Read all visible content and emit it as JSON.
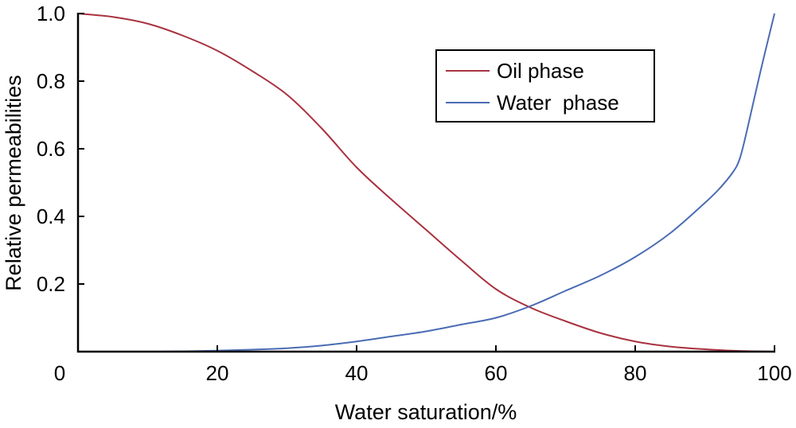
{
  "chart_data": {
    "type": "line",
    "title": "",
    "xlabel": "Water saturation/%",
    "ylabel": "Relative permeabilities",
    "xlim": [
      0,
      100
    ],
    "ylim": [
      0,
      1.0
    ],
    "xticks": [
      "0",
      "20",
      "40",
      "60",
      "80",
      "100"
    ],
    "yticks": [
      "0.2",
      "0.4",
      "0.6",
      "0.8",
      "1.0"
    ],
    "grid": false,
    "legend_position": "top-right",
    "series": [
      {
        "name": "Oil phase",
        "color": "#a83240",
        "x": [
          0,
          5,
          10,
          15,
          20,
          25,
          30,
          35,
          40,
          45,
          50,
          55,
          60,
          65,
          70,
          75,
          80,
          85,
          90,
          95,
          100
        ],
        "y": [
          1.0,
          0.99,
          0.97,
          0.935,
          0.89,
          0.83,
          0.76,
          0.66,
          0.545,
          0.45,
          0.36,
          0.27,
          0.185,
          0.13,
          0.09,
          0.055,
          0.03,
          0.015,
          0.007,
          0.002,
          0.0
        ]
      },
      {
        "name": "Water  phase",
        "color": "#4a6cb3",
        "x": [
          0,
          10,
          15,
          20,
          25,
          30,
          35,
          40,
          45,
          50,
          55,
          60,
          65,
          70,
          75,
          80,
          85,
          90,
          92,
          94,
          95,
          96,
          98,
          100
        ],
        "y": [
          0,
          0,
          0.001,
          0.003,
          0.006,
          0.01,
          0.018,
          0.03,
          0.045,
          0.06,
          0.08,
          0.1,
          0.135,
          0.18,
          0.225,
          0.28,
          0.35,
          0.44,
          0.48,
          0.53,
          0.57,
          0.65,
          0.83,
          1.0
        ]
      }
    ]
  }
}
